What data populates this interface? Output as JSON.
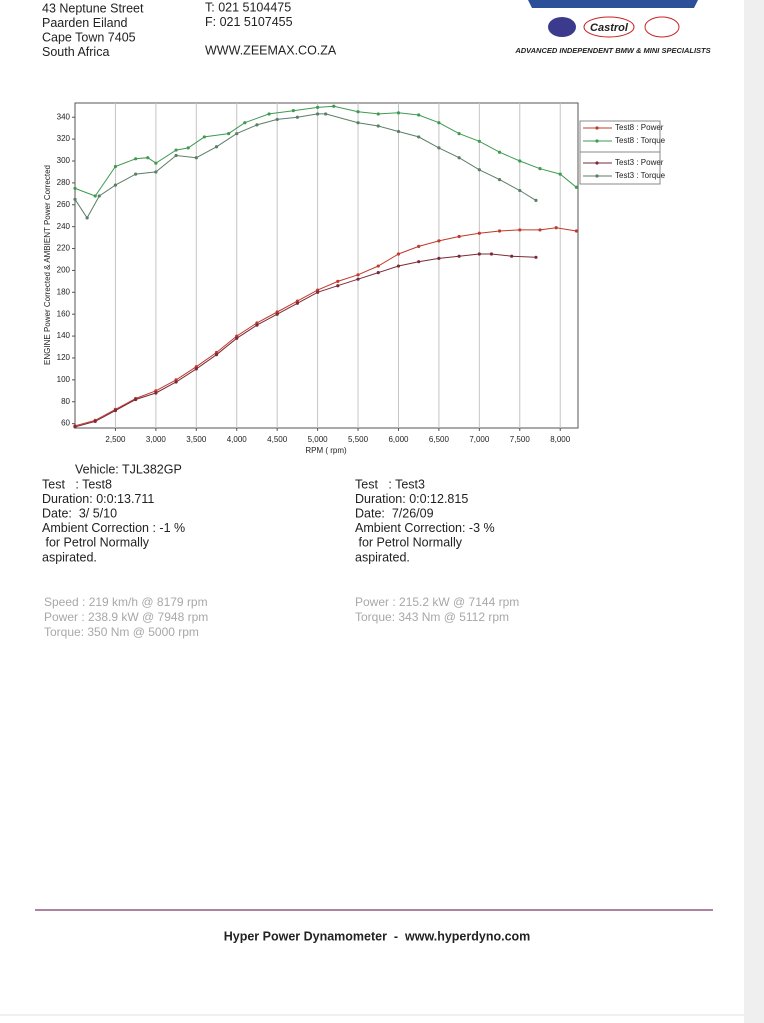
{
  "header": {
    "address": [
      "43 Neptune Street",
      "Paarden Eiland",
      "Cape Town 7405",
      "South Africa"
    ],
    "contact": [
      "T: 021 5104475",
      "F: 021 5107455",
      "WWW.ZEEMAX.CO.ZA"
    ],
    "logo_brand": "Castrol",
    "tagline": "ADVANCED INDEPENDENT BMW & MINI SPECIALISTS"
  },
  "chart_data": {
    "type": "line",
    "y_label": "ENGINE Power Corrected & AMBIENT Power Corrected",
    "x_label": "RPM ( rpm)",
    "xlim": [
      2000,
      8220
    ],
    "ylim": [
      56,
      353
    ],
    "xticks": [
      {
        "value": 2500,
        "label": "2,500"
      },
      {
        "value": 3000,
        "label": "3,000"
      },
      {
        "value": 3500,
        "label": "3,500"
      },
      {
        "value": 4000,
        "label": "4,000"
      },
      {
        "value": 4500,
        "label": "4,500"
      },
      {
        "value": 5000,
        "label": "5,000"
      },
      {
        "value": 5500,
        "label": "5,500"
      },
      {
        "value": 6000,
        "label": "6,000"
      },
      {
        "value": 6500,
        "label": "6,500"
      },
      {
        "value": 7000,
        "label": "7,000"
      },
      {
        "value": 7500,
        "label": "7,500"
      },
      {
        "value": 8000,
        "label": "8,000"
      }
    ],
    "yticks": [
      60,
      80,
      100,
      120,
      140,
      160,
      180,
      200,
      220,
      240,
      260,
      280,
      300,
      320,
      340
    ],
    "grid": "x",
    "legend": "right",
    "series": [
      {
        "name": "Test8 : Power",
        "color": "#c0392b",
        "x": [
          2000,
          2250,
          2500,
          2750,
          3000,
          3250,
          3500,
          3750,
          4000,
          4250,
          4500,
          4750,
          5000,
          5250,
          5500,
          5750,
          6000,
          6250,
          6500,
          6750,
          7000,
          7250,
          7500,
          7750,
          7950,
          8200
        ],
        "values": [
          58,
          63,
          73,
          83,
          90,
          100,
          112,
          125,
          140,
          152,
          162,
          172,
          182,
          190,
          196,
          204,
          215,
          222,
          227,
          231,
          234,
          236,
          237,
          237,
          239,
          236
        ]
      },
      {
        "name": "Test8 : Torque",
        "color": "#3f9a52",
        "x": [
          2000,
          2250,
          2500,
          2750,
          2900,
          3000,
          3250,
          3400,
          3600,
          3900,
          4100,
          4400,
          4700,
          5000,
          5200,
          5500,
          5750,
          6000,
          6250,
          6500,
          6750,
          7000,
          7250,
          7500,
          7750,
          8000,
          8200
        ],
        "values": [
          275,
          268,
          295,
          302,
          303,
          298,
          310,
          312,
          322,
          325,
          335,
          343,
          346,
          349,
          350,
          345,
          343,
          344,
          342,
          335,
          325,
          318,
          308,
          300,
          293,
          288,
          276
        ]
      },
      {
        "name": "Test3 : Power",
        "color": "#7a2a3a",
        "x": [
          2000,
          2250,
          2500,
          2750,
          3000,
          3250,
          3500,
          3750,
          4000,
          4250,
          4500,
          4750,
          5000,
          5250,
          5500,
          5750,
          6000,
          6250,
          6500,
          6750,
          7000,
          7150,
          7400,
          7700
        ],
        "values": [
          57,
          62,
          72,
          82,
          88,
          98,
          110,
          123,
          138,
          150,
          160,
          170,
          180,
          186,
          192,
          198,
          204,
          208,
          211,
          213,
          215,
          215,
          213,
          212
        ]
      },
      {
        "name": "Test3 : Torque",
        "color": "#5a7f66",
        "x": [
          2000,
          2150,
          2300,
          2500,
          2750,
          3000,
          3250,
          3500,
          3750,
          4000,
          4250,
          4500,
          4750,
          5000,
          5100,
          5500,
          5750,
          6000,
          6250,
          6500,
          6750,
          7000,
          7250,
          7500,
          7700
        ],
        "values": [
          265,
          248,
          268,
          278,
          288,
          290,
          305,
          303,
          313,
          325,
          333,
          338,
          340,
          343,
          343,
          335,
          332,
          327,
          322,
          312,
          303,
          292,
          283,
          273,
          264
        ]
      }
    ]
  },
  "details": {
    "vehicle": "Vehicle: TJL382GP",
    "test8": [
      "Test   : Test8",
      "Duration: 0:0:13.711",
      "Date:  3/ 5/10",
      "Ambient Correction : -1 %",
      " for Petrol Normally",
      "aspirated."
    ],
    "test3": [
      "Test   : Test3",
      "Duration: 0:0:12.815",
      "Date:  7/26/09",
      "Ambient Correction: -3 %",
      " for Petrol Normally",
      "aspirated."
    ],
    "test8_stats": [
      "Speed : 219 km/h @ 8179 rpm",
      "Power : 238.9 kW @ 7948 rpm",
      "Torque: 350 Nm @ 5000 rpm"
    ],
    "test3_stats": [
      "Power : 215.2 kW @ 7144 rpm",
      "Torque: 343 Nm @ 5112 rpm"
    ]
  },
  "footer": "Hyper Power Dynamometer  -  www.hyperdyno.com"
}
